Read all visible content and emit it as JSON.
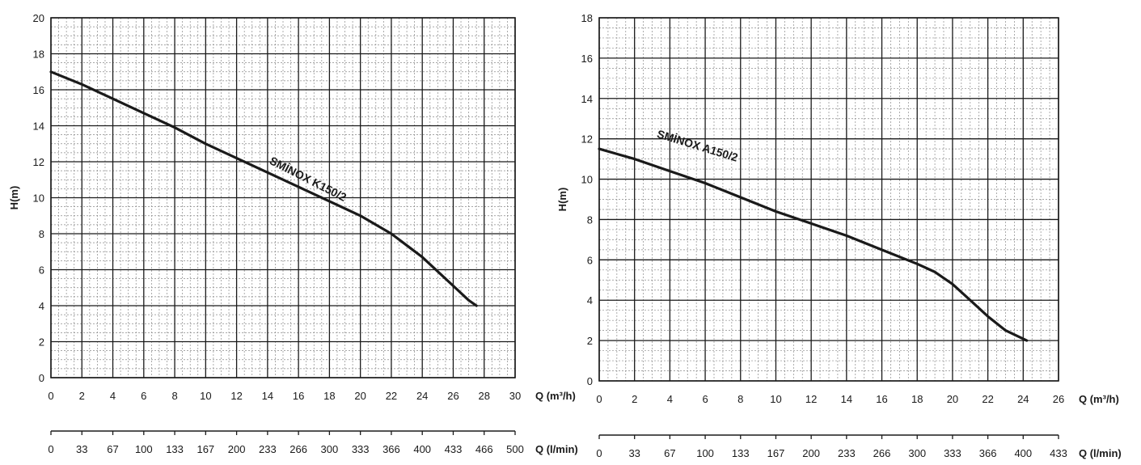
{
  "chart_data": [
    {
      "type": "line",
      "ylabel": "H(m)",
      "xlabel": "Q (m³/h)",
      "x2label": "Q (l/min)",
      "xlim": [
        0,
        30
      ],
      "ylim": [
        0,
        20
      ],
      "x_ticks": [
        "0",
        "2",
        "4",
        "6",
        "8",
        "10",
        "12",
        "14",
        "16",
        "18",
        "20",
        "22",
        "24",
        "26",
        "28",
        "30"
      ],
      "y_ticks": [
        "0",
        "2",
        "4",
        "6",
        "8",
        "10",
        "12",
        "14",
        "16",
        "18",
        "20"
      ],
      "x2_ticks": [
        "0",
        "33",
        "67",
        "100",
        "133",
        "167",
        "200",
        "233",
        "266",
        "300",
        "333",
        "366",
        "400",
        "433",
        "466",
        "500"
      ],
      "grid": true,
      "series": [
        {
          "name": "SMİNOX K150/2",
          "x": [
            0,
            2,
            4,
            6,
            8,
            10,
            12,
            14,
            16,
            18,
            20,
            22,
            24,
            25,
            26,
            27,
            27.5
          ],
          "y": [
            17,
            16.3,
            15.5,
            14.7,
            13.9,
            13.0,
            12.2,
            11.4,
            10.6,
            9.8,
            9.0,
            8.0,
            6.7,
            5.9,
            5.1,
            4.3,
            4.0
          ]
        }
      ]
    },
    {
      "type": "line",
      "ylabel": "H(m)",
      "xlabel": "Q (m³/h)",
      "x2label": "Q (l/min)",
      "xlim": [
        0,
        26
      ],
      "ylim": [
        0,
        18
      ],
      "x_ticks": [
        "0",
        "2",
        "4",
        "6",
        "8",
        "10",
        "12",
        "14",
        "16",
        "18",
        "20",
        "22",
        "24",
        "26"
      ],
      "y_ticks": [
        "0",
        "2",
        "4",
        "6",
        "8",
        "10",
        "12",
        "14",
        "16",
        "18"
      ],
      "x2_ticks": [
        "0",
        "33",
        "67",
        "100",
        "133",
        "167",
        "200",
        "233",
        "266",
        "300",
        "333",
        "366",
        "400",
        "433"
      ],
      "grid": true,
      "series": [
        {
          "name": "SMİNOX A150/2",
          "x": [
            0,
            2,
            4,
            6,
            8,
            10,
            12,
            14,
            16,
            18,
            19,
            20,
            21,
            22,
            23,
            24.2
          ],
          "y": [
            11.5,
            11.0,
            10.4,
            9.8,
            9.1,
            8.4,
            7.8,
            7.2,
            6.5,
            5.8,
            5.4,
            4.8,
            4.0,
            3.2,
            2.5,
            2.0
          ]
        }
      ]
    }
  ]
}
